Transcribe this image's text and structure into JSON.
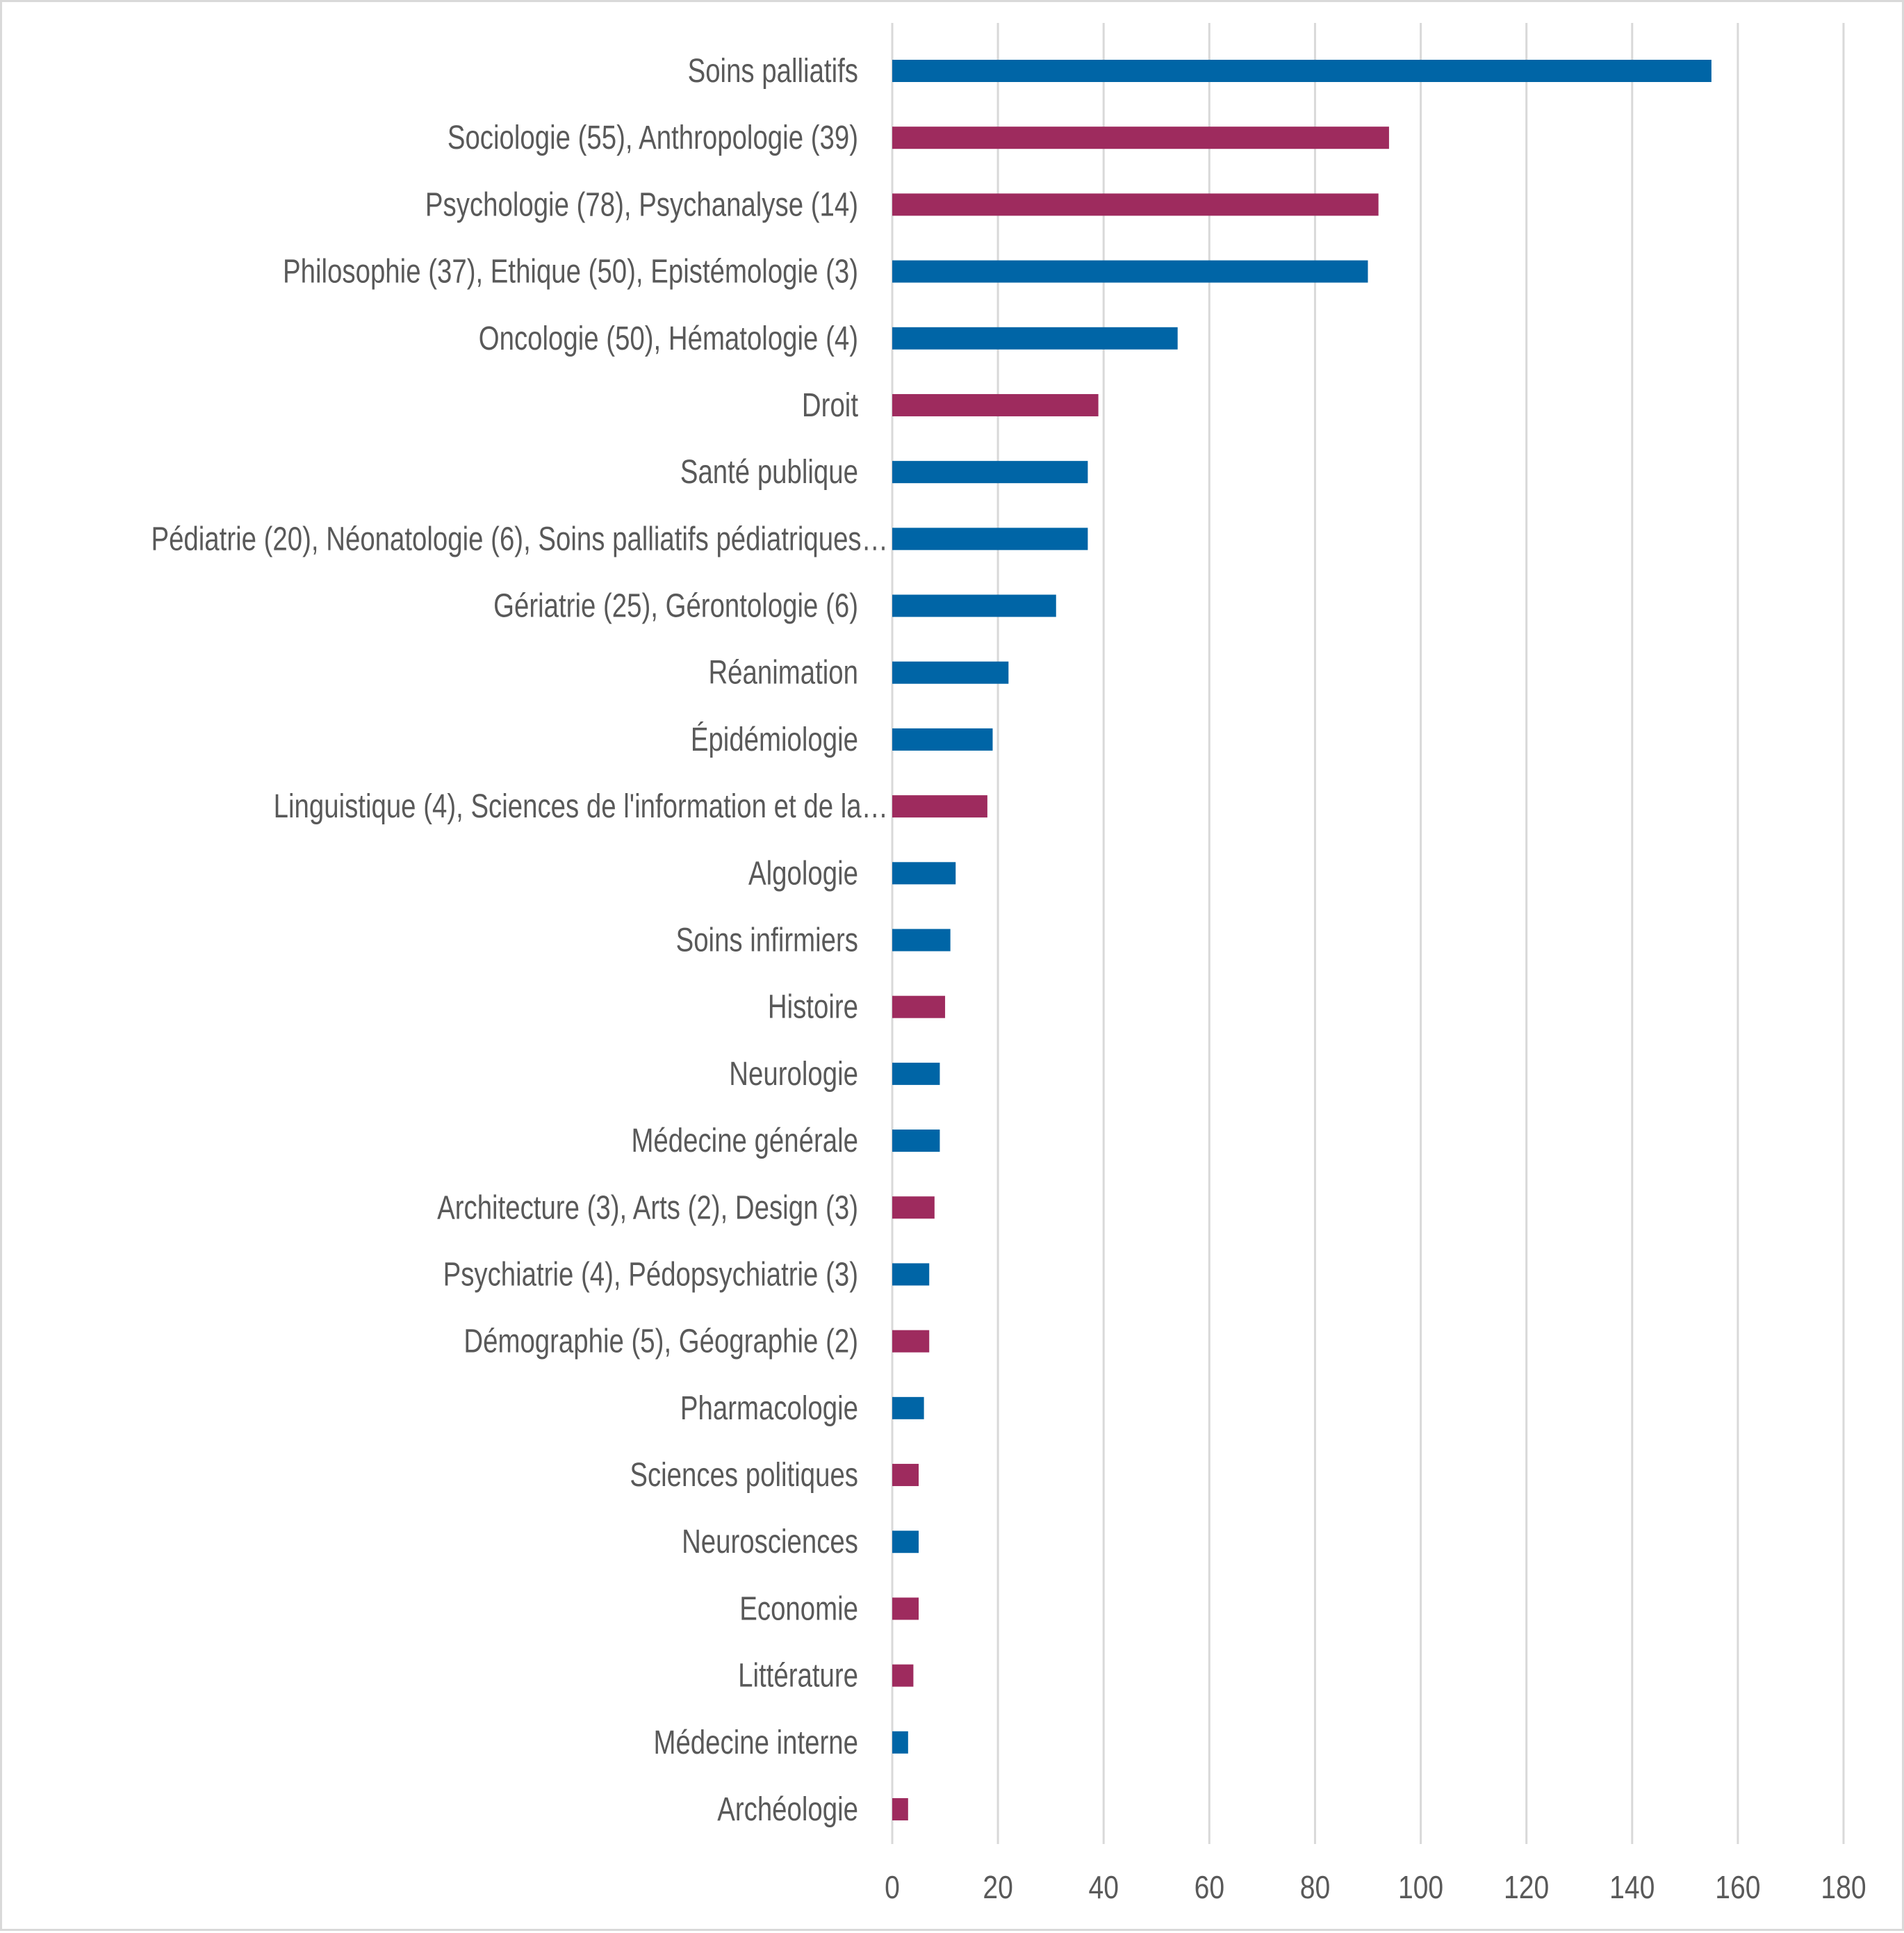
{
  "chart_data": {
    "type": "bar",
    "orientation": "horizontal",
    "title": "",
    "xlabel": "",
    "ylabel": "",
    "xlim": [
      0,
      180
    ],
    "xticks": [
      0,
      20,
      40,
      60,
      80,
      100,
      120,
      140,
      160,
      180
    ],
    "grid": "vertical",
    "legend": "none",
    "colors": {
      "blue": "#0065A6",
      "magenta": "#9E2B5E"
    },
    "categories": [
      "Soins palliatifs",
      "Sociologie (55), Anthropologie (39)",
      "Psychologie (78), Psychanalyse (14)",
      "Philosophie (37), Ethique (50), Epistémologie (3)",
      "Oncologie (50), Hématologie (4)",
      "Droit",
      "Santé publique",
      "Pédiatrie (20), Néonatologie (6), Soins palliatifs pédiatriques…",
      "Gériatrie (25), Gérontologie (6)",
      "Réanimation",
      "Épidémiologie",
      "Linguistique (4), Sciences de l'information et de la…",
      "Algologie",
      "Soins infirmiers",
      "Histoire",
      "Neurologie",
      "Médecine générale",
      "Architecture (3), Arts (2), Design (3)",
      "Psychiatrie (4), Pédopsychiatrie (3)",
      "Démographie (5), Géographie (2)",
      "Pharmacologie",
      "Sciences politiques",
      "Neurosciences",
      "Economie",
      "Littérature",
      "Médecine interne",
      "Archéologie"
    ],
    "values": [
      155,
      94,
      92,
      90,
      54,
      39,
      37,
      37,
      31,
      22,
      19,
      18,
      12,
      11,
      10,
      9,
      9,
      8,
      7,
      7,
      6,
      5,
      5,
      5,
      4,
      3,
      3
    ],
    "bar_colors": [
      "blue",
      "magenta",
      "magenta",
      "blue",
      "blue",
      "magenta",
      "blue",
      "blue",
      "blue",
      "blue",
      "blue",
      "magenta",
      "blue",
      "blue",
      "magenta",
      "blue",
      "blue",
      "magenta",
      "blue",
      "magenta",
      "blue",
      "magenta",
      "blue",
      "magenta",
      "magenta",
      "blue",
      "magenta"
    ]
  }
}
